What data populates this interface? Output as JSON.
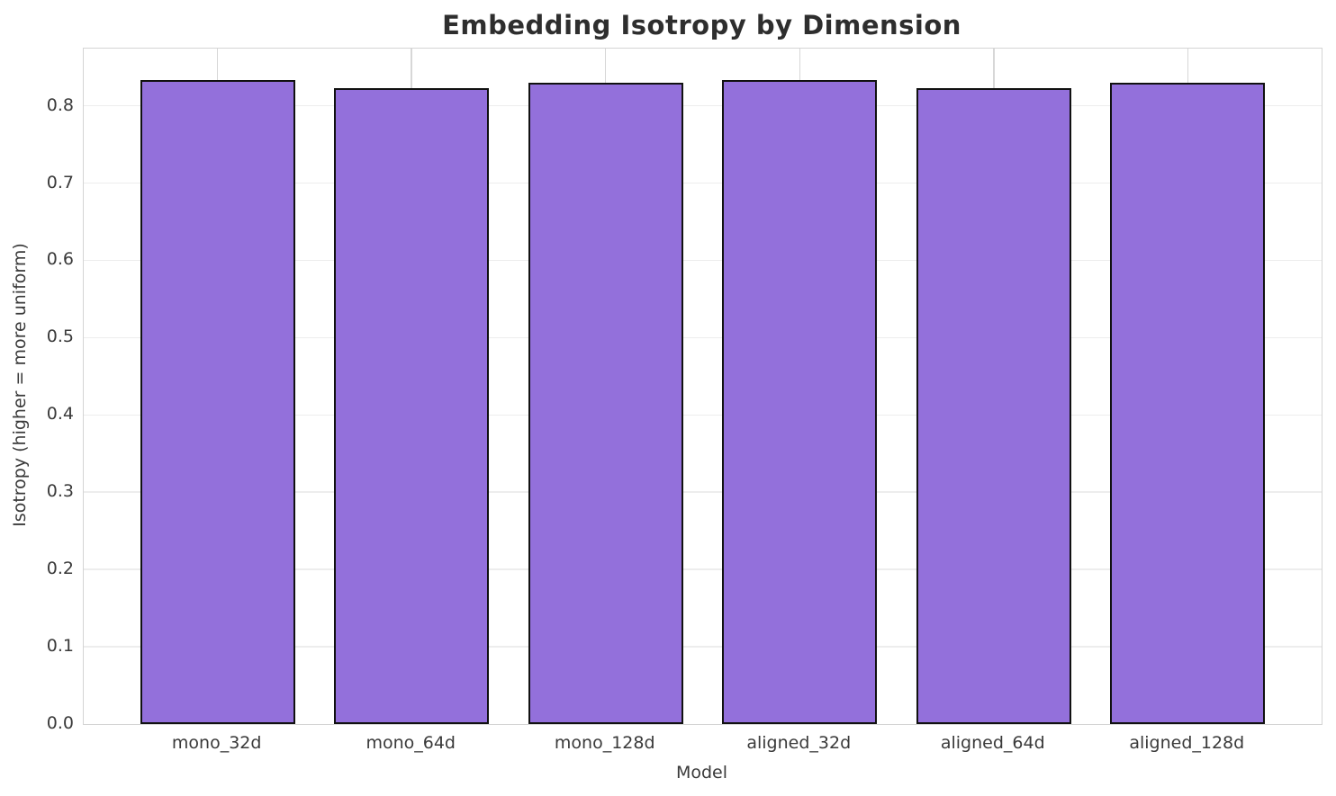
{
  "figure": {
    "background_color": "#ffffff"
  },
  "chart_data": {
    "type": "bar",
    "title": "Embedding Isotropy by Dimension",
    "xlabel": "Model",
    "ylabel": "Isotropy (higher = more uniform)",
    "categories": [
      "mono_32d",
      "mono_64d",
      "mono_128d",
      "aligned_32d",
      "aligned_64d",
      "aligned_128d"
    ],
    "values": [
      0.833,
      0.823,
      0.83,
      0.833,
      0.823,
      0.83
    ],
    "ylim": [
      0,
      0.874
    ],
    "yticks": [
      0.0,
      0.1,
      0.2,
      0.3,
      0.4,
      0.5,
      0.6,
      0.7,
      0.8
    ],
    "ytick_labels": [
      "0.0",
      "0.1",
      "0.2",
      "0.3",
      "0.4",
      "0.5",
      "0.6",
      "0.7",
      "0.8"
    ],
    "grid": true,
    "legend_position": "none",
    "bar_color": "#9370db",
    "bar_edge_color": "#111111",
    "bar_width_fraction": 0.8
  }
}
